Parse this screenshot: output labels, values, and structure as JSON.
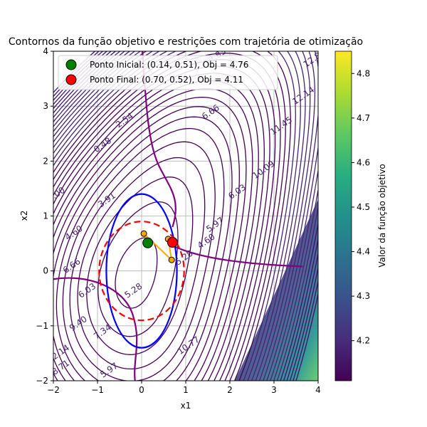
{
  "chart_data": {
    "type": "contour",
    "title": "Contornos da função objetivo e restrições com trajetória de otimização",
    "xlabel": "x1",
    "ylabel": "x2",
    "xlim": [
      -2,
      4
    ],
    "ylim": [
      -2,
      4
    ],
    "x_ticks": [
      "−2",
      "−1",
      "0",
      "1",
      "2",
      "3",
      "4"
    ],
    "y_ticks": [
      "−2",
      "−1",
      "0",
      "1",
      "2",
      "3",
      "4"
    ],
    "grid": true,
    "legend_position": "top-left",
    "legend": [
      {
        "label": "Ponto Inicial: (0.14, 0.51), Obj = 4.76",
        "color": "#008000"
      },
      {
        "label": "Ponto Final: (0.70, 0.52), Obj = 4.11",
        "color": "#ff0000"
      }
    ],
    "colorbar": {
      "label": "Valor da função objetivo",
      "min": 4.11,
      "max": 4.85,
      "ticks": [
        "4.2",
        "4.3",
        "4.4",
        "4.5",
        "4.6",
        "4.7",
        "4.8"
      ],
      "tick_values": [
        4.2,
        4.3,
        4.4,
        4.5,
        4.6,
        4.7,
        4.8
      ]
    },
    "contour_labels": [
      {
        "text": "12.83",
        "x": 1.7,
        "y": 3.85
      },
      {
        "text": "6.66",
        "x": 1.6,
        "y": 2.85
      },
      {
        "text": "2.54",
        "x": -0.35,
        "y": 2.7
      },
      {
        "text": "0.48",
        "x": -0.85,
        "y": 2.25
      },
      {
        "text": "3.91",
        "x": -0.75,
        "y": 1.25
      },
      {
        "text": "5.00",
        "x": -1.9,
        "y": 1.35
      },
      {
        "text": "4.60",
        "x": -1.5,
        "y": 0.65
      },
      {
        "text": "6.66",
        "x": -1.55,
        "y": 0.05
      },
      {
        "text": "6.03",
        "x": -1.2,
        "y": -0.4
      },
      {
        "text": "9.40",
        "x": -1.4,
        "y": -1.0
      },
      {
        "text": "7.34",
        "x": -0.85,
        "y": -1.15
      },
      {
        "text": "8.71",
        "x": -1.8,
        "y": -1.8
      },
      {
        "text": "5.97",
        "x": -0.7,
        "y": -1.85
      },
      {
        "text": "5.28",
        "x": -0.15,
        "y": -0.4
      },
      {
        "text": "5.28",
        "x": 1.0,
        "y": 0.2
      },
      {
        "text": "4.60",
        "x": 1.5,
        "y": 0.5
      },
      {
        "text": "5.97",
        "x": 1.7,
        "y": 0.8
      },
      {
        "text": "6.03",
        "x": 2.2,
        "y": 1.4
      },
      {
        "text": "10.09",
        "x": 2.8,
        "y": 1.8
      },
      {
        "text": "12.14",
        "x": 3.7,
        "y": 3.15
      },
      {
        "text": "12.8",
        "x": 3.9,
        "y": 3.8
      },
      {
        "text": "11.45",
        "x": 3.2,
        "y": 2.6
      },
      {
        "text": "10.77",
        "x": 1.1,
        "y": -1.4
      },
      {
        "text": "12.14",
        "x": -1.85,
        "y": -1.55
      }
    ],
    "constraints": [
      {
        "type": "ellipse",
        "center": [
          0,
          0
        ],
        "rx": 0.8,
        "ry": 1.4,
        "color": "#0000ff",
        "style": "solid"
      },
      {
        "type": "circle",
        "center": [
          0,
          0
        ],
        "r": 0.9,
        "color": "#ff0000",
        "style": "dashed"
      }
    ],
    "trajectory": {
      "color": "#ffa500",
      "points": [
        [
          0.14,
          0.51
        ],
        [
          0.05,
          0.68
        ],
        [
          0.68,
          0.2
        ],
        [
          0.6,
          0.58
        ],
        [
          0.7,
          0.52
        ]
      ]
    },
    "start_point": {
      "x": 0.14,
      "y": 0.51,
      "color": "#008000"
    },
    "end_point": {
      "x": 0.7,
      "y": 0.52,
      "color": "#ff0000"
    }
  }
}
